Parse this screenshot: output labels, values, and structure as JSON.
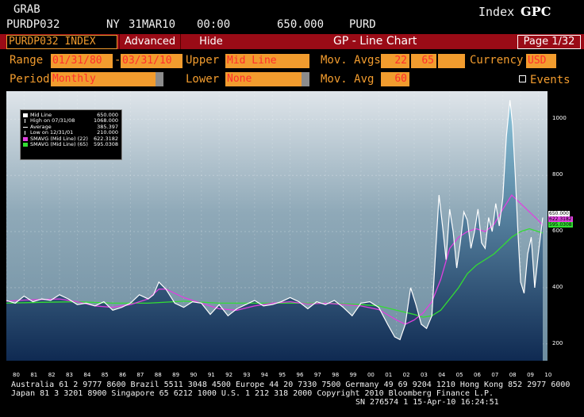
{
  "header": {
    "function": "GRAB",
    "ticker": "PURDP032",
    "exchange": "NY",
    "date": "31MAR10",
    "time": "00:00",
    "price": "650.000",
    "code": "PURD",
    "index_label": "Index",
    "index_code": "GPC"
  },
  "toolbar": {
    "security": "PURDP032 INDEX",
    "advanced": "Advanced",
    "hide": "Hide",
    "chart_title": "GP - Line Chart",
    "page": "Page 1/32"
  },
  "params": {
    "range_label": "Range",
    "range_from": "01/31/80",
    "range_sep": "-",
    "range_to": "03/31/10",
    "upper_label": "Upper",
    "upper_value": "Mid Line",
    "mov_avgs_label": "Mov. Avgs",
    "mov_avg_1": "22",
    "mov_avg_2": "65",
    "mov_avg_3": "",
    "currency_label": "Currency",
    "currency_value": "USD",
    "period_label": "Period",
    "period_value": "Monthly",
    "lower_label": "Lower",
    "lower_value": "None",
    "mov_avg_label": "Mov. Avg",
    "mov_avg_lower": "60",
    "events_label": "Events"
  },
  "legend": [
    {
      "name": "Mid Line",
      "value": "650.000",
      "color": "#ffffff"
    },
    {
      "name": "High on 07/31/08",
      "value": "1068.000",
      "color": "#ffffff"
    },
    {
      "name": "Average",
      "value": "385.397",
      "color": "#ffffff"
    },
    {
      "name": "Low on 12/31/01",
      "value": "210.000",
      "color": "#ffffff"
    },
    {
      "name": "SMAVG (Mid Line) (22)",
      "value": "622.3182",
      "color": "#e040e0"
    },
    {
      "name": "SMAVG (Mid Line) (65)",
      "value": "595.0308",
      "color": "#33dd33"
    }
  ],
  "last_values": [
    {
      "value": "650.000",
      "color": "#ffffff",
      "text": "#000000"
    },
    {
      "value": "622.3182",
      "color": "#e040e0",
      "text": "#000000"
    },
    {
      "value": "595.0308",
      "color": "#33dd33",
      "text": "#000000"
    }
  ],
  "chart_data": {
    "type": "area",
    "ylim": [
      140,
      1100
    ],
    "yticks": [
      200,
      400,
      600,
      800,
      1000
    ],
    "xlim": [
      1980,
      2010.25
    ],
    "xticks": [
      "80",
      "81",
      "82",
      "83",
      "84",
      "85",
      "86",
      "87",
      "88",
      "89",
      "90",
      "91",
      "92",
      "93",
      "94",
      "95",
      "96",
      "97",
      "98",
      "99",
      "00",
      "01",
      "02",
      "03",
      "04",
      "05",
      "06",
      "07",
      "08",
      "09",
      "10"
    ],
    "colors": {
      "main": "#ffffff",
      "ma22": "#e040e0",
      "ma65": "#33dd33",
      "fill_top": "#8fc7dc",
      "fill_bottom": "#0f2a52"
    },
    "series": [
      {
        "name": "Mid Line",
        "x": [
          1980.0,
          1980.5,
          1981.0,
          1981.5,
          1982.0,
          1982.5,
          1983.0,
          1983.5,
          1984.0,
          1984.5,
          1985.0,
          1985.5,
          1986.0,
          1986.5,
          1987.0,
          1987.5,
          1988.0,
          1988.3,
          1988.6,
          1989.0,
          1989.5,
          1990.0,
          1990.5,
          1991.0,
          1991.5,
          1992.0,
          1992.5,
          1993.0,
          1993.5,
          1994.0,
          1994.5,
          1995.0,
          1995.5,
          1996.0,
          1996.5,
          1997.0,
          1997.5,
          1998.0,
          1998.5,
          1999.0,
          1999.5,
          2000.0,
          2000.5,
          2001.0,
          2001.5,
          2001.9,
          2002.2,
          2002.5,
          2002.8,
          2003.1,
          2003.4,
          2003.7,
          2004.0,
          2004.2,
          2004.4,
          2004.6,
          2004.8,
          2005.0,
          2005.2,
          2005.4,
          2005.6,
          2005.8,
          2006.0,
          2006.2,
          2006.4,
          2006.6,
          2006.8,
          2007.0,
          2007.2,
          2007.4,
          2007.6,
          2007.8,
          2008.0,
          2008.2,
          2008.4,
          2008.55,
          2008.7,
          2008.85,
          2009.0,
          2009.2,
          2009.4,
          2009.6,
          2009.8,
          2010.0,
          2010.25
        ],
        "values": [
          355,
          345,
          370,
          350,
          360,
          355,
          375,
          360,
          340,
          345,
          335,
          350,
          320,
          330,
          345,
          375,
          360,
          375,
          420,
          395,
          345,
          330,
          350,
          345,
          305,
          340,
          300,
          325,
          340,
          355,
          335,
          340,
          350,
          365,
          350,
          325,
          350,
          340,
          355,
          330,
          300,
          345,
          350,
          330,
          270,
          225,
          215,
          270,
          400,
          340,
          270,
          255,
          300,
          520,
          730,
          620,
          500,
          680,
          600,
          470,
          560,
          670,
          640,
          540,
          600,
          680,
          560,
          540,
          650,
          600,
          700,
          620,
          720,
          940,
          1068,
          980,
          800,
          600,
          420,
          380,
          520,
          580,
          400,
          520,
          650
        ]
      },
      {
        "name": "SMAVG (Mid Line) (22)",
        "x": [
          1980.0,
          1981.0,
          1982.0,
          1983.0,
          1984.0,
          1985.0,
          1986.0,
          1987.0,
          1988.0,
          1988.6,
          1989.0,
          1990.0,
          1991.0,
          1992.0,
          1993.0,
          1994.0,
          1995.0,
          1996.0,
          1997.0,
          1998.0,
          1999.0,
          2000.0,
          2001.0,
          2002.0,
          2002.5,
          2003.0,
          2003.5,
          2004.0,
          2004.5,
          2005.0,
          2005.5,
          2006.0,
          2006.5,
          2007.0,
          2007.5,
          2008.0,
          2008.5,
          2009.0,
          2009.5,
          2010.0,
          2010.25
        ],
        "values": [
          352,
          356,
          358,
          360,
          350,
          335,
          330,
          340,
          360,
          395,
          395,
          365,
          345,
          325,
          320,
          335,
          345,
          350,
          342,
          345,
          340,
          335,
          322,
          285,
          270,
          285,
          310,
          350,
          430,
          540,
          580,
          600,
          610,
          600,
          625,
          680,
          730,
          700,
          670,
          640,
          622
        ]
      },
      {
        "name": "SMAVG (Mid Line) (65)",
        "x": [
          1980.0,
          1982.0,
          1984.0,
          1986.0,
          1988.0,
          1990.0,
          1992.0,
          1994.0,
          1996.0,
          1998.0,
          2000.0,
          2001.0,
          2002.0,
          2003.0,
          2003.5,
          2004.0,
          2004.5,
          2005.0,
          2005.5,
          2006.0,
          2006.5,
          2007.0,
          2007.5,
          2008.0,
          2008.5,
          2009.0,
          2009.5,
          2010.0,
          2010.25
        ],
        "values": [
          345,
          348,
          350,
          345,
          345,
          352,
          345,
          345,
          345,
          345,
          340,
          335,
          320,
          305,
          295,
          300,
          320,
          360,
          400,
          450,
          480,
          500,
          520,
          550,
          580,
          600,
          610,
          600,
          595
        ]
      }
    ]
  },
  "footer": {
    "line1": "Australia 61 2 9777 8600 Brazil 5511 3048 4500 Europe 44 20 7330 7500 Germany 49 69 9204 1210 Hong Kong 852 2977 6000",
    "line2": "Japan 81 3 3201 8900        Singapore 65 6212 1000        U.S. 1 212 318 2000          Copyright 2010 Bloomberg Finance L.P.",
    "line3": "SN 276574 1 15-Apr-10 16:24:51"
  }
}
